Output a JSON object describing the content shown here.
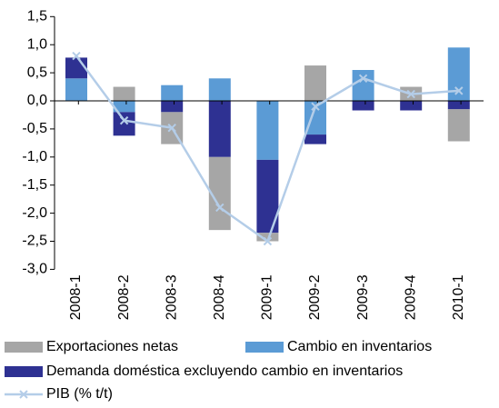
{
  "chart_data": {
    "type": "bar",
    "stacked": true,
    "categories": [
      "2008-1",
      "2008-2",
      "2008-3",
      "2008-4",
      "2009-1",
      "2009-2",
      "2009-3",
      "2009-4",
      "2010-1"
    ],
    "series": [
      {
        "name": "Exportaciones netas",
        "color": "#a6a6a6",
        "values": [
          0,
          0.25,
          -0.57,
          -1.3,
          -0.15,
          0.63,
          0,
          0.25,
          -0.57
        ]
      },
      {
        "name": "Cambio en inventarios",
        "color": "#5b9bd5",
        "values": [
          0.4,
          -0.2,
          0.28,
          0.4,
          -1.05,
          -0.6,
          0.55,
          0,
          0.95
        ]
      },
      {
        "name": "Demanda doméstica excluyendo cambio en inventarios",
        "color": "#2e3192",
        "values": [
          0.37,
          -0.42,
          -0.2,
          -1.0,
          -1.3,
          -0.17,
          -0.17,
          -0.17,
          -0.15
        ]
      },
      {
        "name": "PIB (% t/t)",
        "type": "line",
        "color": "#b4cde8",
        "values": [
          0.8,
          -0.35,
          -0.48,
          -1.9,
          -2.5,
          -0.1,
          0.4,
          0.12,
          0.18
        ]
      }
    ],
    "ylim": [
      -3.0,
      1.5
    ],
    "yticks": [
      {
        "value": 1.5,
        "label": "1,5"
      },
      {
        "value": 1.0,
        "label": "1,0"
      },
      {
        "value": 0.5,
        "label": "0,5"
      },
      {
        "value": 0.0,
        "label": "0,0"
      },
      {
        "value": -0.5,
        "label": "-0,5"
      },
      {
        "value": -1.0,
        "label": "-1,0"
      },
      {
        "value": -1.5,
        "label": "-1,5"
      },
      {
        "value": -2.0,
        "label": "-2,0"
      },
      {
        "value": -2.5,
        "label": "-2,5"
      },
      {
        "value": -3.0,
        "label": "-3,0"
      }
    ],
    "grid": false
  }
}
